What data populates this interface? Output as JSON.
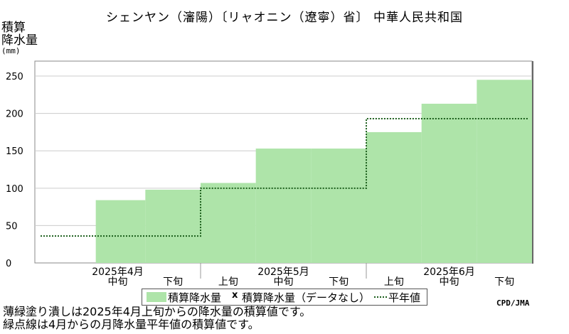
{
  "title": "シェンヤン（瀋陽）〔リャオニン（遼寧）省〕 中華人民共和国",
  "ylabel_lines": [
    "積算",
    "降水量"
  ],
  "yunit": "(mm)",
  "colors": {
    "fill": "#aee4a9",
    "normal_line": "#1a5d1a",
    "grid": "#cccccc",
    "frame": "#888888"
  },
  "legend": {
    "observed": "積算降水量",
    "missing_marker": "x",
    "missing": "積算降水量（データなし）",
    "normal": "平年値"
  },
  "credit": "CPD/JMA",
  "notes": [
    "薄緑塗り潰しは2025年4月上旬からの降水量の積算値です。",
    "緑点線は4月からの月降水量平年値の積算値です。"
  ],
  "chart_data": {
    "type": "area",
    "ylim": [
      0,
      270
    ],
    "yticks": [
      0,
      50,
      100,
      150,
      200,
      250
    ],
    "grid": true,
    "months": [
      "2025年4月",
      "2025年5月",
      "2025年6月"
    ],
    "periods": [
      "上旬",
      "中旬",
      "下旬",
      "上旬",
      "中旬",
      "下旬",
      "上旬",
      "中旬",
      "下旬"
    ],
    "visible_period_labels": [
      false,
      true,
      true,
      true,
      true,
      true,
      true,
      true,
      true
    ],
    "series": [
      {
        "name": "積算降水量",
        "values": [
          null,
          84,
          98,
          107,
          153,
          153,
          175,
          213,
          245
        ]
      },
      {
        "name": "平年値",
        "monthly_values": [
          36,
          100,
          193
        ]
      }
    ]
  }
}
